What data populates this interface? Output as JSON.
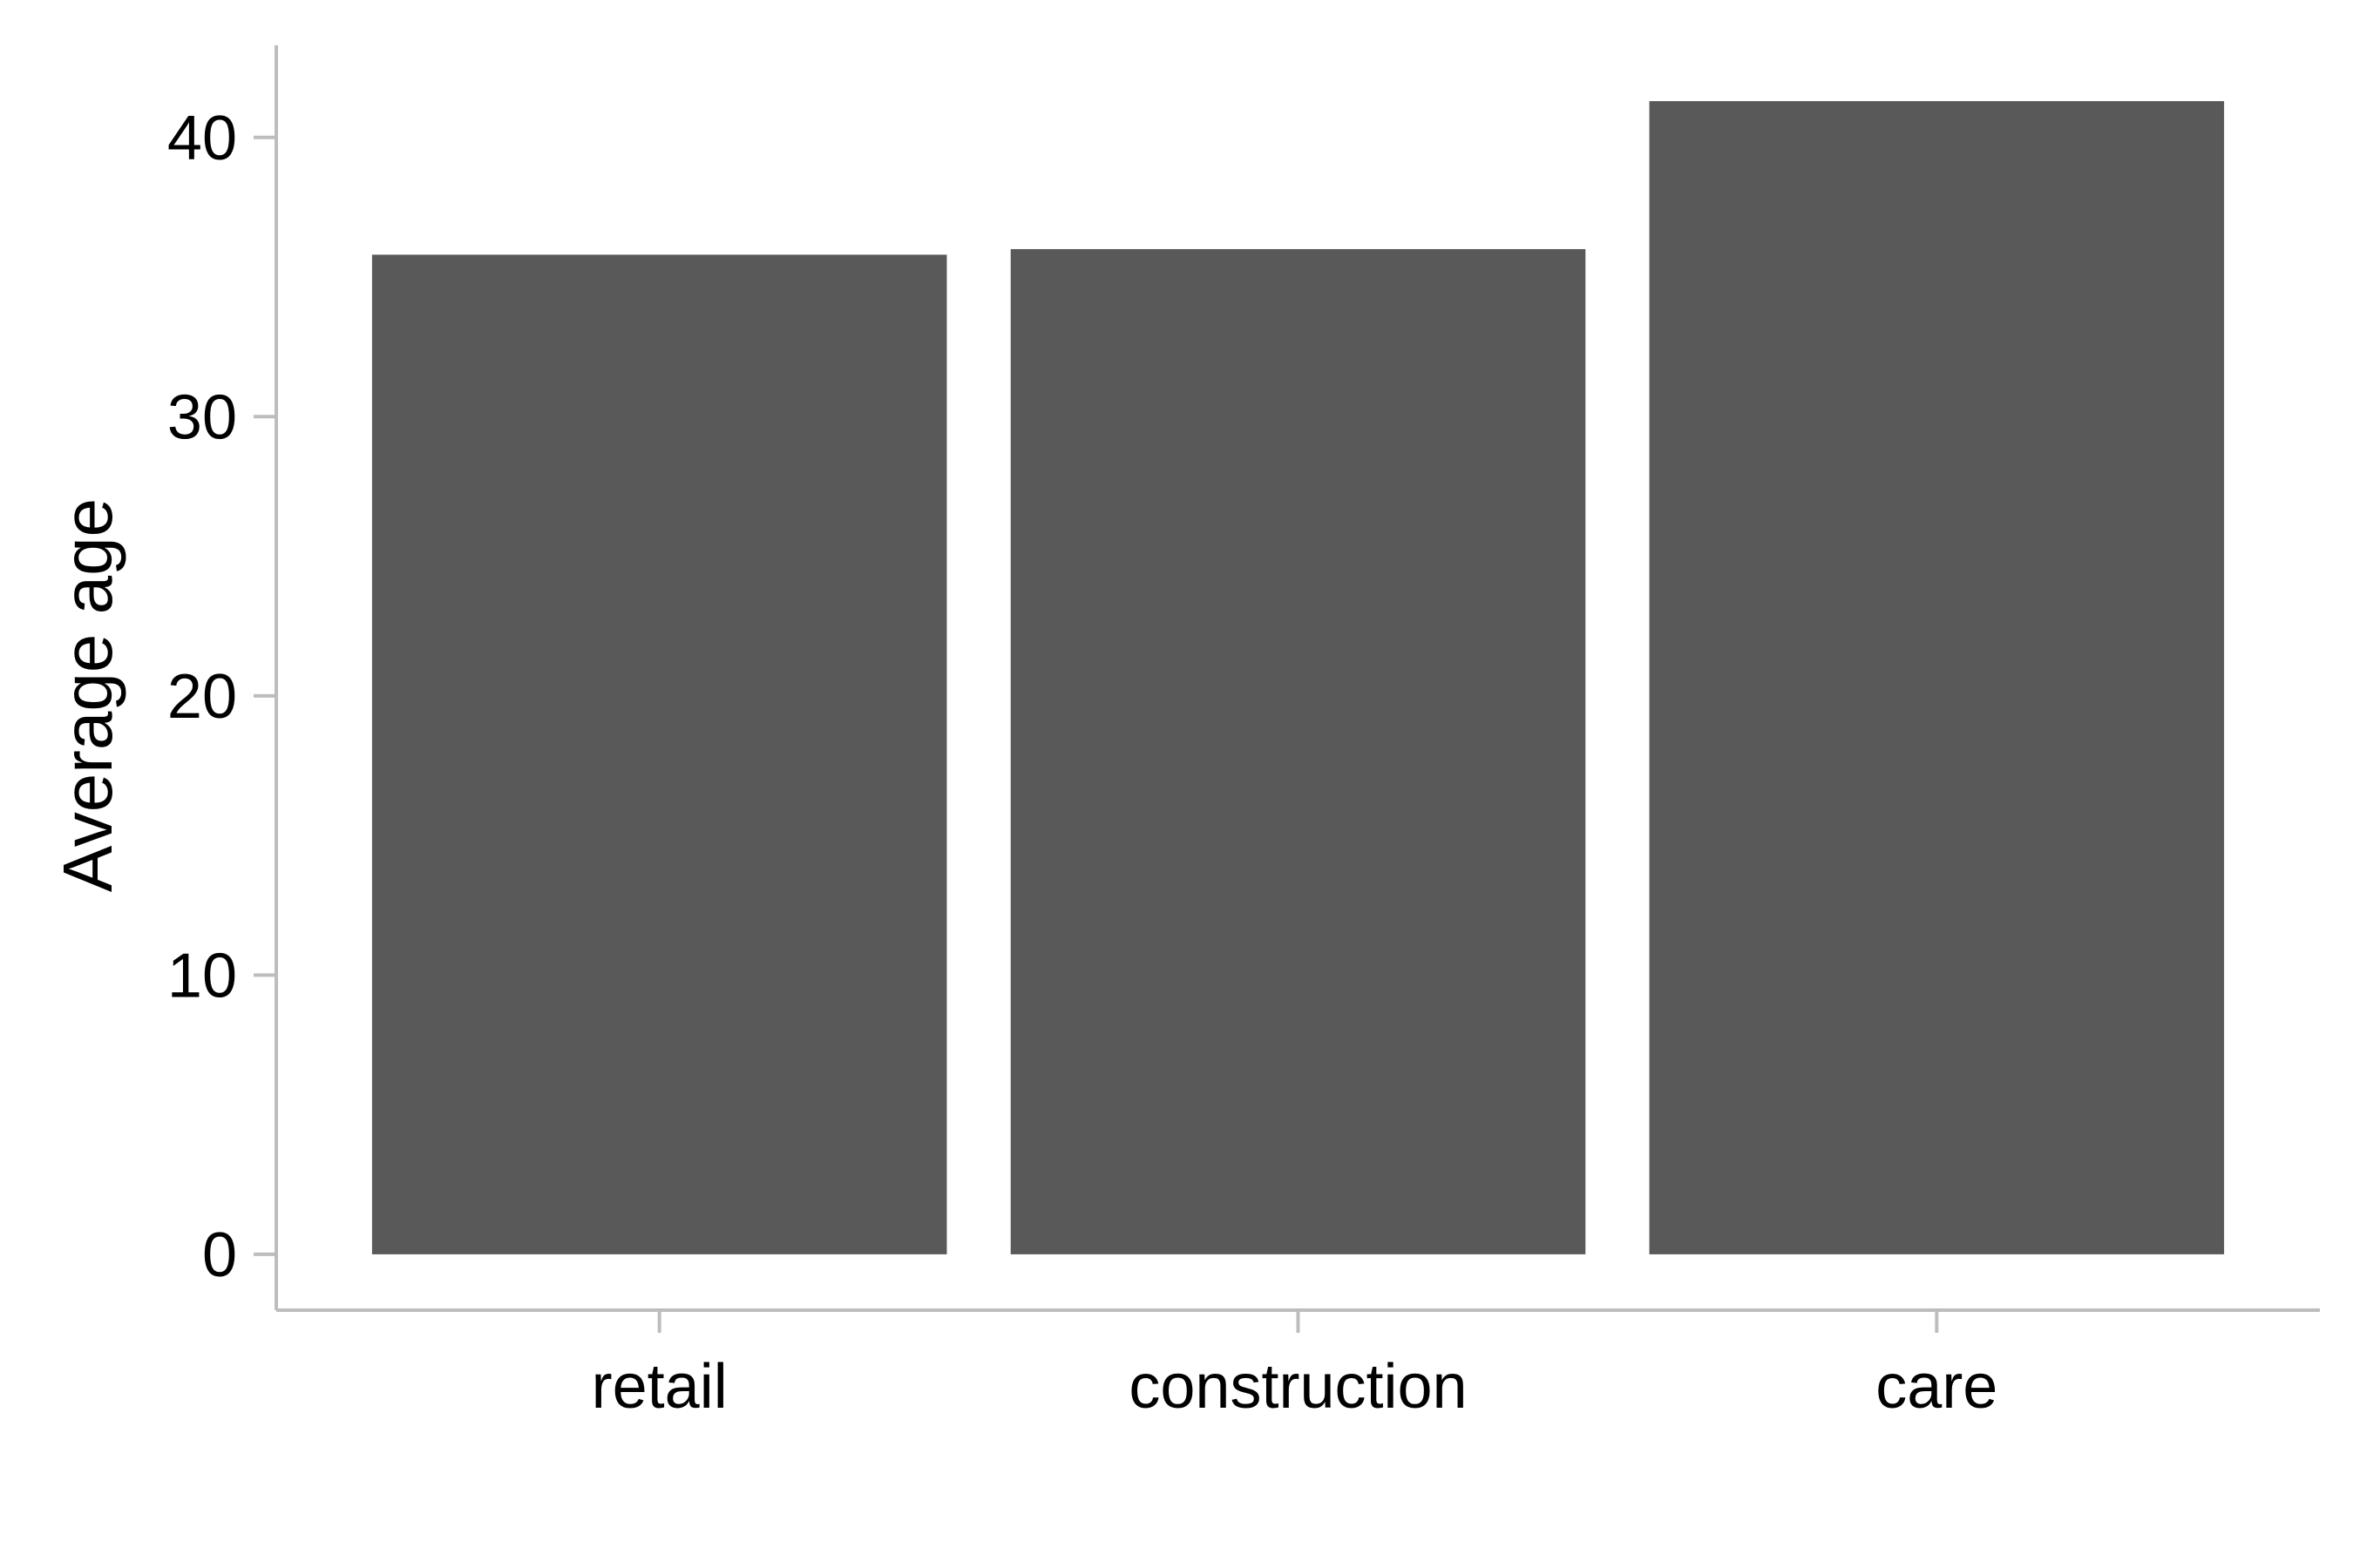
{
  "chart_data": {
    "type": "bar",
    "title": "",
    "xlabel": "",
    "ylabel": "Average age",
    "categories": [
      "retail",
      "construction",
      "care"
    ],
    "values": [
      35.8,
      36.0,
      41.3
    ],
    "ylim": [
      -2,
      43.3
    ],
    "yticks": [
      0,
      10,
      20,
      30,
      40
    ],
    "ytick_labels": [
      "0",
      "10",
      "20",
      "30",
      "40"
    ],
    "grid": false,
    "legend": "none",
    "colors": {
      "bar": "#595959",
      "axis": "#bdbdbd",
      "text": "#000000"
    }
  }
}
